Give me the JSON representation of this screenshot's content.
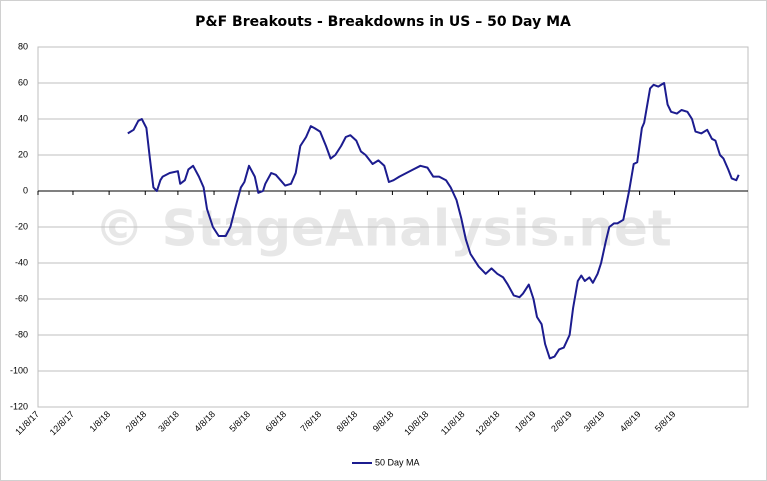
{
  "chart_data": {
    "type": "line",
    "title": "P&F Breakouts - Breakdowns in US – 50 Day MA",
    "watermark": "© StageAnalysis.net",
    "x": [
      "1/24/18",
      "1/29/18",
      "2/2/18",
      "2/5/18",
      "2/9/18",
      "2/12/18",
      "2/15/18",
      "2/18/18",
      "2/21/18",
      "2/23/18",
      "3/1/18",
      "3/8/18",
      "3/10/18",
      "3/14/18",
      "3/17/18",
      "3/21/18",
      "3/26/18",
      "3/30/18",
      "4/2/18",
      "4/7/18",
      "4/12/18",
      "4/18/18",
      "4/22/18",
      "4/26/18",
      "5/1/18",
      "5/4/18",
      "5/8/18",
      "5/13/18",
      "5/16/18",
      "5/20/18",
      "5/22/18",
      "5/27/18",
      "5/31/18",
      "6/4/18",
      "6/8/18",
      "6/13/18",
      "6/17/18",
      "6/21/18",
      "6/26/18",
      "6/30/18",
      "7/3/18",
      "7/8/18",
      "7/13/18",
      "7/17/18",
      "7/21/18",
      "7/26/18",
      "7/30/18",
      "8/3/18",
      "8/8/18",
      "8/12/18",
      "8/16/18",
      "8/22/18",
      "8/27/18",
      "9/1/18",
      "9/5/18",
      "9/9/18",
      "9/14/18",
      "9/20/18",
      "9/26/18",
      "10/2/18",
      "10/8/18",
      "10/13/18",
      "10/18/18",
      "10/24/18",
      "10/28/18",
      "11/2/18",
      "11/6/18",
      "11/10/18",
      "11/14/18",
      "11/21/18",
      "11/27/18",
      "12/2/18",
      "12/7/18",
      "12/12/18",
      "12/16/18",
      "12/21/18",
      "12/26/18",
      "12/29/18",
      "1/3/19",
      "1/7/19",
      "1/10/19",
      "1/14/19",
      "1/17/19",
      "1/21/19",
      "1/25/19",
      "1/29/19",
      "2/2/19",
      "2/7/19",
      "2/10/19",
      "2/14/19",
      "2/17/19",
      "2/20/19",
      "2/24/19",
      "2/27/19",
      "3/3/19",
      "3/6/19",
      "3/10/19",
      "3/13/19",
      "3/17/19",
      "3/20/19",
      "3/25/19",
      "3/30/19",
      "4/3/19",
      "4/6/19",
      "4/10/19",
      "4/12/19",
      "4/17/19",
      "4/20/19",
      "4/24/19",
      "4/29/19",
      "5/2/19",
      "5/5/19",
      "5/10/19",
      "5/14/19",
      "5/19/19",
      "5/23/19",
      "5/26/19",
      "5/31/19",
      "6/5/19",
      "6/9/19",
      "6/12/19",
      "6/16/19",
      "6/19/19",
      "6/23/19",
      "6/26/19",
      "6/30/19",
      "7/2/19"
    ],
    "series": [
      {
        "name": "50 Day MA",
        "color": "#1c1c8f",
        "values": [
          32,
          34,
          39,
          40,
          35,
          18,
          2,
          0,
          6,
          8,
          10,
          11,
          4,
          6,
          12,
          14,
          8,
          2,
          -10,
          -20,
          -25,
          -25,
          -20,
          -10,
          2,
          5,
          14,
          8,
          -1,
          0,
          4,
          10,
          9,
          6,
          3,
          4,
          10,
          25,
          30,
          36,
          35,
          33,
          25,
          18,
          20,
          25,
          30,
          31,
          28,
          22,
          20,
          15,
          17,
          14,
          5,
          6,
          8,
          10,
          12,
          14,
          13,
          8,
          8,
          6,
          2,
          -5,
          -15,
          -27,
          -35,
          -42,
          -46,
          -43,
          -46,
          -48,
          -52,
          -58,
          -59,
          -57,
          -52,
          -60,
          -70,
          -74,
          -85,
          -93,
          -92,
          -88,
          -87,
          -80,
          -65,
          -50,
          -47,
          -50,
          -48,
          -51,
          -46,
          -40,
          -28,
          -20,
          -18,
          -18,
          -16,
          0,
          15,
          16,
          35,
          38,
          57,
          59,
          58,
          60,
          48,
          44,
          43,
          45,
          44,
          40,
          33,
          32,
          34,
          29,
          28,
          20,
          18,
          12,
          7,
          6,
          9
        ]
      }
    ],
    "xlim": [
      "11/8/17",
      "7/10/19"
    ],
    "xticks": [
      "11/8/17",
      "12/8/17",
      "1/8/18",
      "2/8/18",
      "3/8/18",
      "4/8/18",
      "5/8/18",
      "6/8/18",
      "7/8/18",
      "8/8/18",
      "9/8/18",
      "10/8/18",
      "11/8/18",
      "12/8/18",
      "1/8/19",
      "2/8/19",
      "3/8/19",
      "4/8/19",
      "5/8/19"
    ],
    "ylim": [
      -120,
      80
    ],
    "yticks": [
      -120,
      -100,
      -80,
      -60,
      -40,
      -20,
      0,
      20,
      40,
      60,
      80
    ],
    "grid": true,
    "legend": "bottom"
  }
}
